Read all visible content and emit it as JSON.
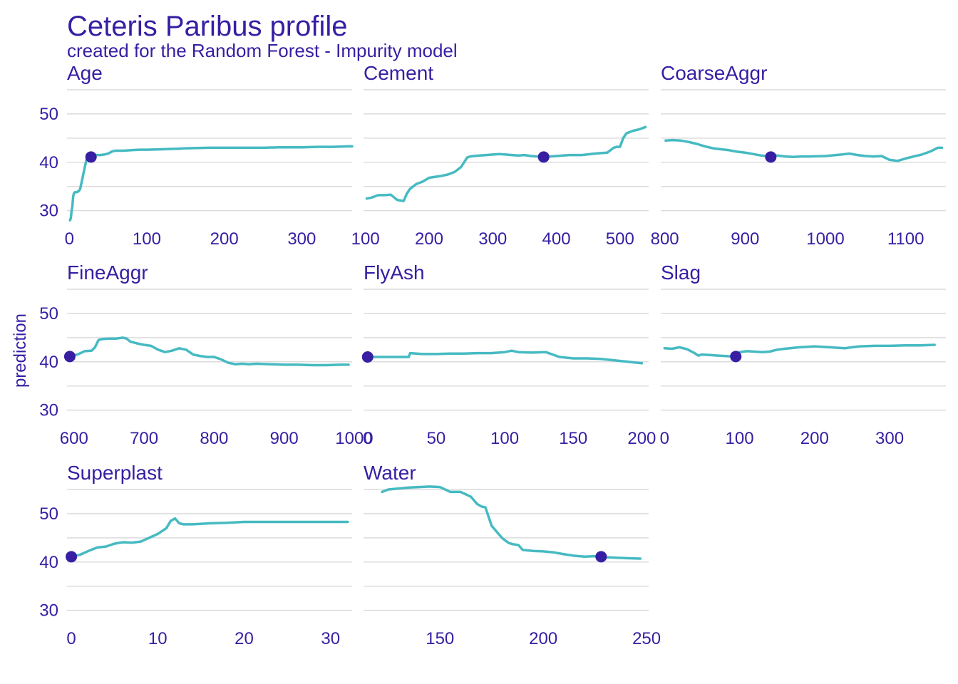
{
  "colors": {
    "text": "#371ea3",
    "line": "#46bac2",
    "point": "#371ea3",
    "grid": "#dcdcdc"
  },
  "title": "Ceteris Paribus profile",
  "subtitle": "created for the Random Forest - Impurity model",
  "ylabel": "prediction",
  "chart_data": {
    "type": "line",
    "title": "Ceteris Paribus profile",
    "subtitle": "created for the Random Forest - Impurity model",
    "ylabel": "prediction",
    "ylim": [
      27,
      55
    ],
    "yticks": [
      30,
      40,
      50
    ],
    "grid": true,
    "panels": [
      {
        "name": "Age",
        "xlim": [
          -3,
          365
        ],
        "xticks": [
          0,
          100,
          200,
          300
        ],
        "observation": {
          "x": 28,
          "y": 41.1
        },
        "series": {
          "x": [
            1,
            2,
            3,
            4,
            5,
            6,
            7,
            9,
            12,
            14,
            16,
            18,
            20,
            22,
            25,
            26,
            28,
            30,
            33,
            35,
            40,
            45,
            50,
            56,
            60,
            70,
            80,
            90,
            100,
            120,
            140,
            150,
            180,
            200,
            220,
            250,
            270,
            300,
            320,
            340,
            360,
            365
          ],
          "y": [
            28,
            28.5,
            30,
            31,
            33,
            33.6,
            33.8,
            33.8,
            34,
            34.5,
            36,
            37.5,
            39,
            40.5,
            40.8,
            41,
            41.1,
            41.2,
            41.3,
            41.5,
            41.5,
            41.6,
            41.8,
            42.3,
            42.4,
            42.4,
            42.5,
            42.6,
            42.6,
            42.7,
            42.8,
            42.9,
            43.0,
            43.0,
            43.0,
            43.0,
            43.1,
            43.1,
            43.2,
            43.2,
            43.3,
            43.3
          ]
        }
      },
      {
        "name": "Cement",
        "xlim": [
          97,
          545
        ],
        "xticks": [
          100,
          200,
          300,
          400,
          500
        ],
        "observation": {
          "x": 380,
          "y": 41.1
        },
        "series": {
          "x": [
            102,
            110,
            120,
            130,
            140,
            150,
            160,
            165,
            170,
            180,
            190,
            200,
            210,
            220,
            230,
            240,
            250,
            255,
            260,
            265,
            270,
            280,
            290,
            300,
            310,
            320,
            330,
            340,
            350,
            360,
            370,
            380,
            390,
            400,
            420,
            440,
            460,
            470,
            480,
            490,
            495,
            500,
            505,
            510,
            520,
            530,
            540
          ],
          "y": [
            32.5,
            32.7,
            33.2,
            33.2,
            33.3,
            32.2,
            32.0,
            33.5,
            34.5,
            35.5,
            36.0,
            36.8,
            37.0,
            37.2,
            37.5,
            38.0,
            39.0,
            40.0,
            41.0,
            41.2,
            41.3,
            41.4,
            41.5,
            41.6,
            41.7,
            41.6,
            41.5,
            41.4,
            41.5,
            41.3,
            41.2,
            41.1,
            41.2,
            41.3,
            41.5,
            41.5,
            41.8,
            41.9,
            42.0,
            43.0,
            43.2,
            43.2,
            45.0,
            46.0,
            46.5,
            46.8,
            47.3
          ]
        }
      },
      {
        "name": "CoarseAggr",
        "xlim": [
          795,
          1150
        ],
        "xticks": [
          800,
          900,
          1000,
          1100
        ],
        "observation": {
          "x": 932,
          "y": 41.1
        },
        "series": {
          "x": [
            801,
            810,
            820,
            830,
            840,
            850,
            860,
            870,
            880,
            890,
            900,
            910,
            920,
            930,
            940,
            950,
            960,
            970,
            980,
            1000,
            1020,
            1030,
            1040,
            1050,
            1060,
            1070,
            1080,
            1090,
            1100,
            1110,
            1120,
            1130,
            1140,
            1145
          ],
          "y": [
            44.5,
            44.6,
            44.5,
            44.2,
            43.8,
            43.3,
            42.9,
            42.7,
            42.5,
            42.2,
            42.0,
            41.7,
            41.4,
            41.2,
            41.4,
            41.2,
            41.1,
            41.2,
            41.2,
            41.3,
            41.6,
            41.8,
            41.5,
            41.3,
            41.2,
            41.3,
            40.5,
            40.3,
            40.8,
            41.2,
            41.6,
            42.2,
            43.0,
            43.0
          ]
        }
      },
      {
        "name": "FineAggr",
        "xlim": [
          590,
          997
        ],
        "xticks": [
          600,
          700,
          800,
          900,
          1000
        ],
        "observation": {
          "x": 594,
          "y": 41.1
        },
        "series": {
          "x": [
            594,
            605,
            615,
            625,
            630,
            635,
            640,
            650,
            660,
            670,
            675,
            680,
            690,
            700,
            710,
            720,
            730,
            740,
            750,
            760,
            770,
            780,
            790,
            800,
            810,
            820,
            830,
            840,
            850,
            860,
            880,
            900,
            920,
            940,
            960,
            980,
            992
          ],
          "y": [
            41.2,
            41.5,
            42.2,
            42.3,
            43.0,
            44.5,
            44.7,
            44.8,
            44.8,
            45.0,
            44.8,
            44.2,
            43.8,
            43.5,
            43.3,
            42.5,
            42.0,
            42.3,
            42.8,
            42.5,
            41.5,
            41.2,
            41.0,
            41.0,
            40.5,
            39.8,
            39.5,
            39.6,
            39.5,
            39.6,
            39.5,
            39.4,
            39.4,
            39.3,
            39.3,
            39.4,
            39.4
          ]
        }
      },
      {
        "name": "FlyAsh",
        "xlim": [
          -3,
          205
        ],
        "xticks": [
          0,
          50,
          100,
          150,
          200
        ],
        "observation": {
          "x": 0,
          "y": 41.0
        },
        "series": {
          "x": [
            0,
            10,
            20,
            30,
            31,
            40,
            50,
            60,
            70,
            80,
            90,
            100,
            105,
            110,
            120,
            130,
            135,
            140,
            150,
            160,
            170,
            180,
            190,
            200
          ],
          "y": [
            41.0,
            41.0,
            41.0,
            41.0,
            41.8,
            41.6,
            41.6,
            41.7,
            41.7,
            41.8,
            41.8,
            42.0,
            42.3,
            42.0,
            41.9,
            42.0,
            41.5,
            41.0,
            40.7,
            40.7,
            40.6,
            40.3,
            40.0,
            39.7
          ]
        }
      },
      {
        "name": "Slag",
        "xlim": [
          -5,
          375
        ],
        "xticks": [
          0,
          100,
          200,
          300
        ],
        "observation": {
          "x": 95,
          "y": 41.1
        },
        "series": {
          "x": [
            0,
            10,
            20,
            30,
            40,
            45,
            50,
            60,
            70,
            80,
            90,
            95,
            100,
            110,
            120,
            130,
            140,
            150,
            160,
            180,
            200,
            220,
            240,
            250,
            260,
            280,
            300,
            320,
            340,
            360
          ],
          "y": [
            42.8,
            42.7,
            43.0,
            42.6,
            41.8,
            41.3,
            41.5,
            41.4,
            41.3,
            41.2,
            41.1,
            41.1,
            42.0,
            42.2,
            42.1,
            42.0,
            42.1,
            42.5,
            42.7,
            43.0,
            43.2,
            43.0,
            42.8,
            43.0,
            43.2,
            43.3,
            43.3,
            43.4,
            43.4,
            43.5
          ]
        }
      },
      {
        "name": "Superplast",
        "xlim": [
          -0.5,
          32.5
        ],
        "xticks": [
          0,
          10,
          20,
          30
        ],
        "observation": {
          "x": 0,
          "y": 41.1
        },
        "series": {
          "x": [
            0,
            1,
            2,
            3,
            4,
            5,
            6,
            7,
            8,
            9,
            10,
            11,
            11.5,
            12,
            12.5,
            13,
            14,
            16,
            18,
            20,
            22,
            25,
            28,
            32
          ],
          "y": [
            41.1,
            41.5,
            42.3,
            43.0,
            43.2,
            43.8,
            44.1,
            44.0,
            44.2,
            45.0,
            45.8,
            47.0,
            48.5,
            49.0,
            48.0,
            47.8,
            47.8,
            48.0,
            48.1,
            48.3,
            48.3,
            48.3,
            48.3,
            48.3
          ]
        }
      },
      {
        "name": "Water",
        "xlim": [
          113,
          251
        ],
        "xticks": [
          150,
          200,
          250
        ],
        "observation": {
          "x": 228,
          "y": 41.1
        },
        "series": {
          "x": [
            122,
            125,
            130,
            135,
            140,
            145,
            150,
            155,
            160,
            165,
            168,
            170,
            172,
            175,
            178,
            180,
            183,
            185,
            188,
            190,
            195,
            200,
            205,
            210,
            215,
            220,
            225,
            228,
            230,
            235,
            240,
            247
          ],
          "y": [
            54.5,
            55.0,
            55.2,
            55.4,
            55.5,
            55.6,
            55.5,
            54.5,
            54.5,
            53.5,
            52.0,
            51.5,
            51.3,
            47.5,
            46.0,
            45.0,
            44.0,
            43.7,
            43.5,
            42.5,
            42.3,
            42.2,
            42.0,
            41.6,
            41.3,
            41.1,
            41.2,
            41.1,
            41.0,
            40.9,
            40.8,
            40.7
          ]
        }
      }
    ]
  }
}
